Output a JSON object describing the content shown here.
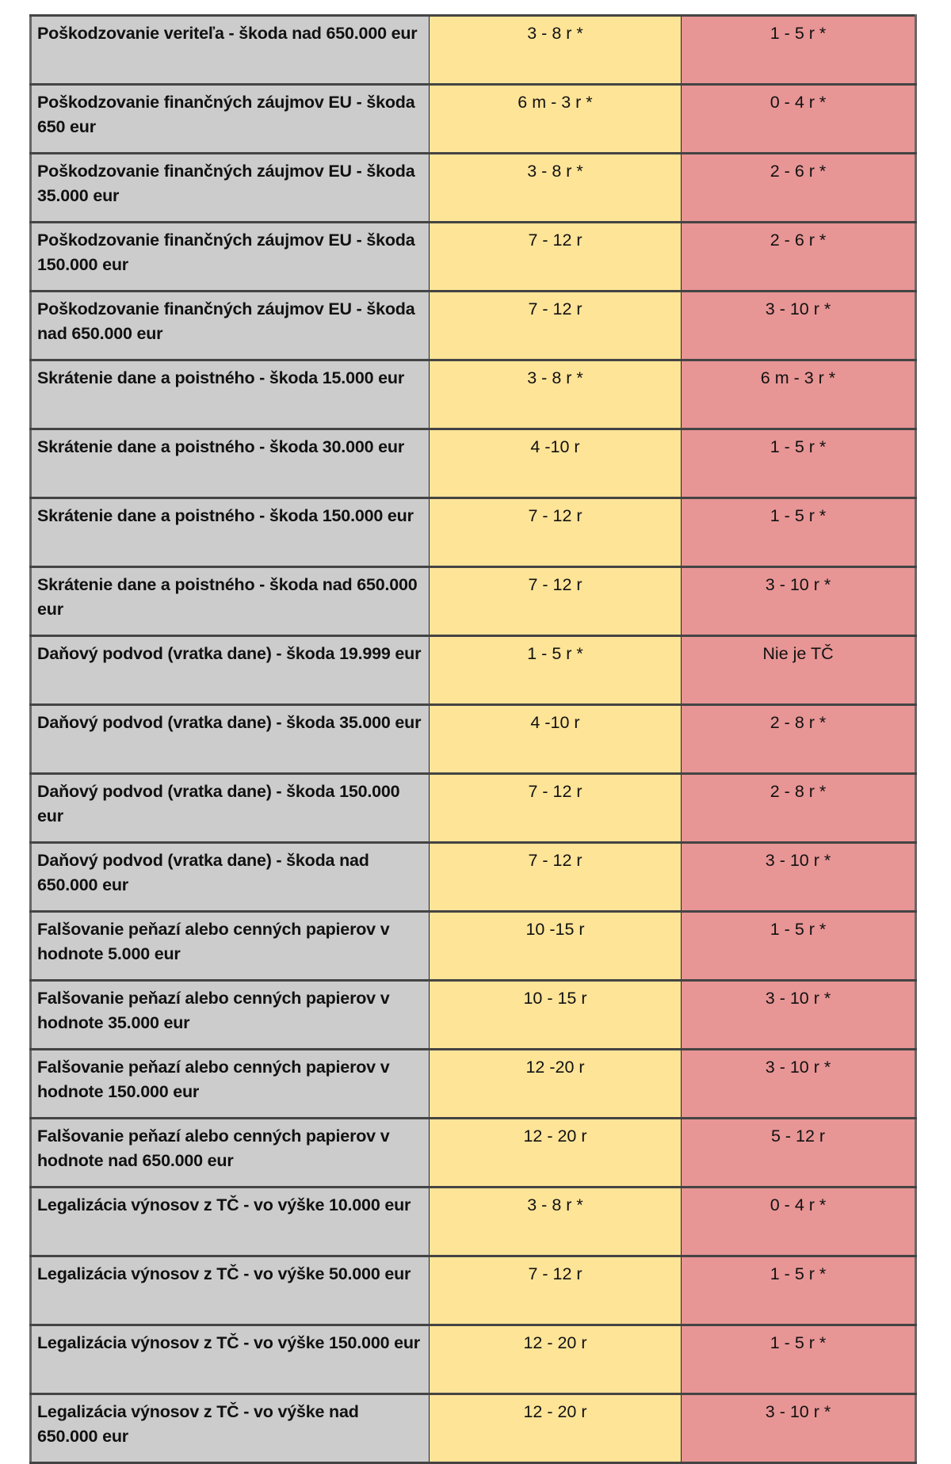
{
  "colors": {
    "offense": "#cccccc",
    "col2": "#fee497",
    "col3": "#e89595"
  },
  "rows": [
    {
      "offense": "Poškodzovanie veriteľa - škoda nad 650.000 eur",
      "col2": "3 - 8 r *",
      "col3": "1 - 5 r *"
    },
    {
      "offense": "Poškodzovanie finančných záujmov EU - škoda 650 eur",
      "col2": "6 m - 3 r *",
      "col3": "0 - 4 r *"
    },
    {
      "offense": "Poškodzovanie finančných záujmov EU - škoda 35.000 eur",
      "col2": "3 - 8 r *",
      "col3": "2 - 6 r *"
    },
    {
      "offense": "Poškodzovanie finančných záujmov EU - škoda 150.000 eur",
      "col2": "7 - 12 r",
      "col3": "2 - 6 r *"
    },
    {
      "offense": "Poškodzovanie finančných záujmov EU - škoda nad 650.000 eur",
      "col2": "7 - 12 r",
      "col3": "3 - 10 r *"
    },
    {
      "offense": "Skrátenie dane a poistného - škoda 15.000 eur",
      "col2": "3 - 8 r *",
      "col3": "6 m - 3 r *"
    },
    {
      "offense": "Skrátenie dane a poistného - škoda 30.000 eur",
      "col2": "4 -10 r",
      "col3": "1 - 5 r *"
    },
    {
      "offense": "Skrátenie dane a poistného - škoda 150.000 eur",
      "col2": "7 - 12 r",
      "col3": "1 - 5 r *"
    },
    {
      "offense": "Skrátenie dane a poistného - škoda nad 650.000 eur",
      "col2": "7 - 12 r",
      "col3": "3 - 10 r *"
    },
    {
      "offense": "Daňový podvod (vratka dane) - škoda 19.999 eur",
      "col2": "1 - 5 r *",
      "col3": "Nie je TČ"
    },
    {
      "offense": "Daňový podvod (vratka dane) - škoda 35.000 eur",
      "col2": "4 -10 r",
      "col3": "2 - 8 r *"
    },
    {
      "offense": "Daňový podvod (vratka dane) - škoda 150.000 eur",
      "col2": "7 - 12 r",
      "col3": "2 - 8 r *"
    },
    {
      "offense": "Daňový podvod (vratka dane) - škoda nad 650.000 eur",
      "col2": "7 - 12 r",
      "col3": "3 - 10 r *"
    },
    {
      "offense": "Falšovanie peňazí alebo cenných papierov v hodnote 5.000 eur",
      "col2": "10 -15 r",
      "col3": "1 - 5 r *"
    },
    {
      "offense": "Falšovanie peňazí alebo cenných papierov v hodnote 35.000 eur",
      "col2": "10 - 15 r",
      "col3": "3 - 10 r *"
    },
    {
      "offense": "Falšovanie peňazí alebo cenných papierov v hodnote 150.000 eur",
      "col2": "12 -20 r",
      "col3": "3 - 10 r *"
    },
    {
      "offense": "Falšovanie peňazí alebo cenných papierov v hodnote nad 650.000 eur",
      "col2": "12 - 20 r",
      "col3": "5 - 12 r"
    },
    {
      "offense": "Legalizácia výnosov z TČ - vo výške 10.000 eur",
      "col2": "3 - 8 r *",
      "col3": "0 - 4 r *"
    },
    {
      "offense": "Legalizácia výnosov z TČ - vo výške 50.000 eur",
      "col2": "7 - 12 r",
      "col3": "1 - 5 r *"
    },
    {
      "offense": "Legalizácia výnosov z TČ - vo výške 150.000 eur",
      "col2": "12 - 20 r",
      "col3": "1 - 5 r *"
    },
    {
      "offense": "Legalizácia výnosov z TČ - vo výške nad 650.000 eur",
      "col2": "12 - 20 r",
      "col3": "3 - 10 r *"
    }
  ]
}
